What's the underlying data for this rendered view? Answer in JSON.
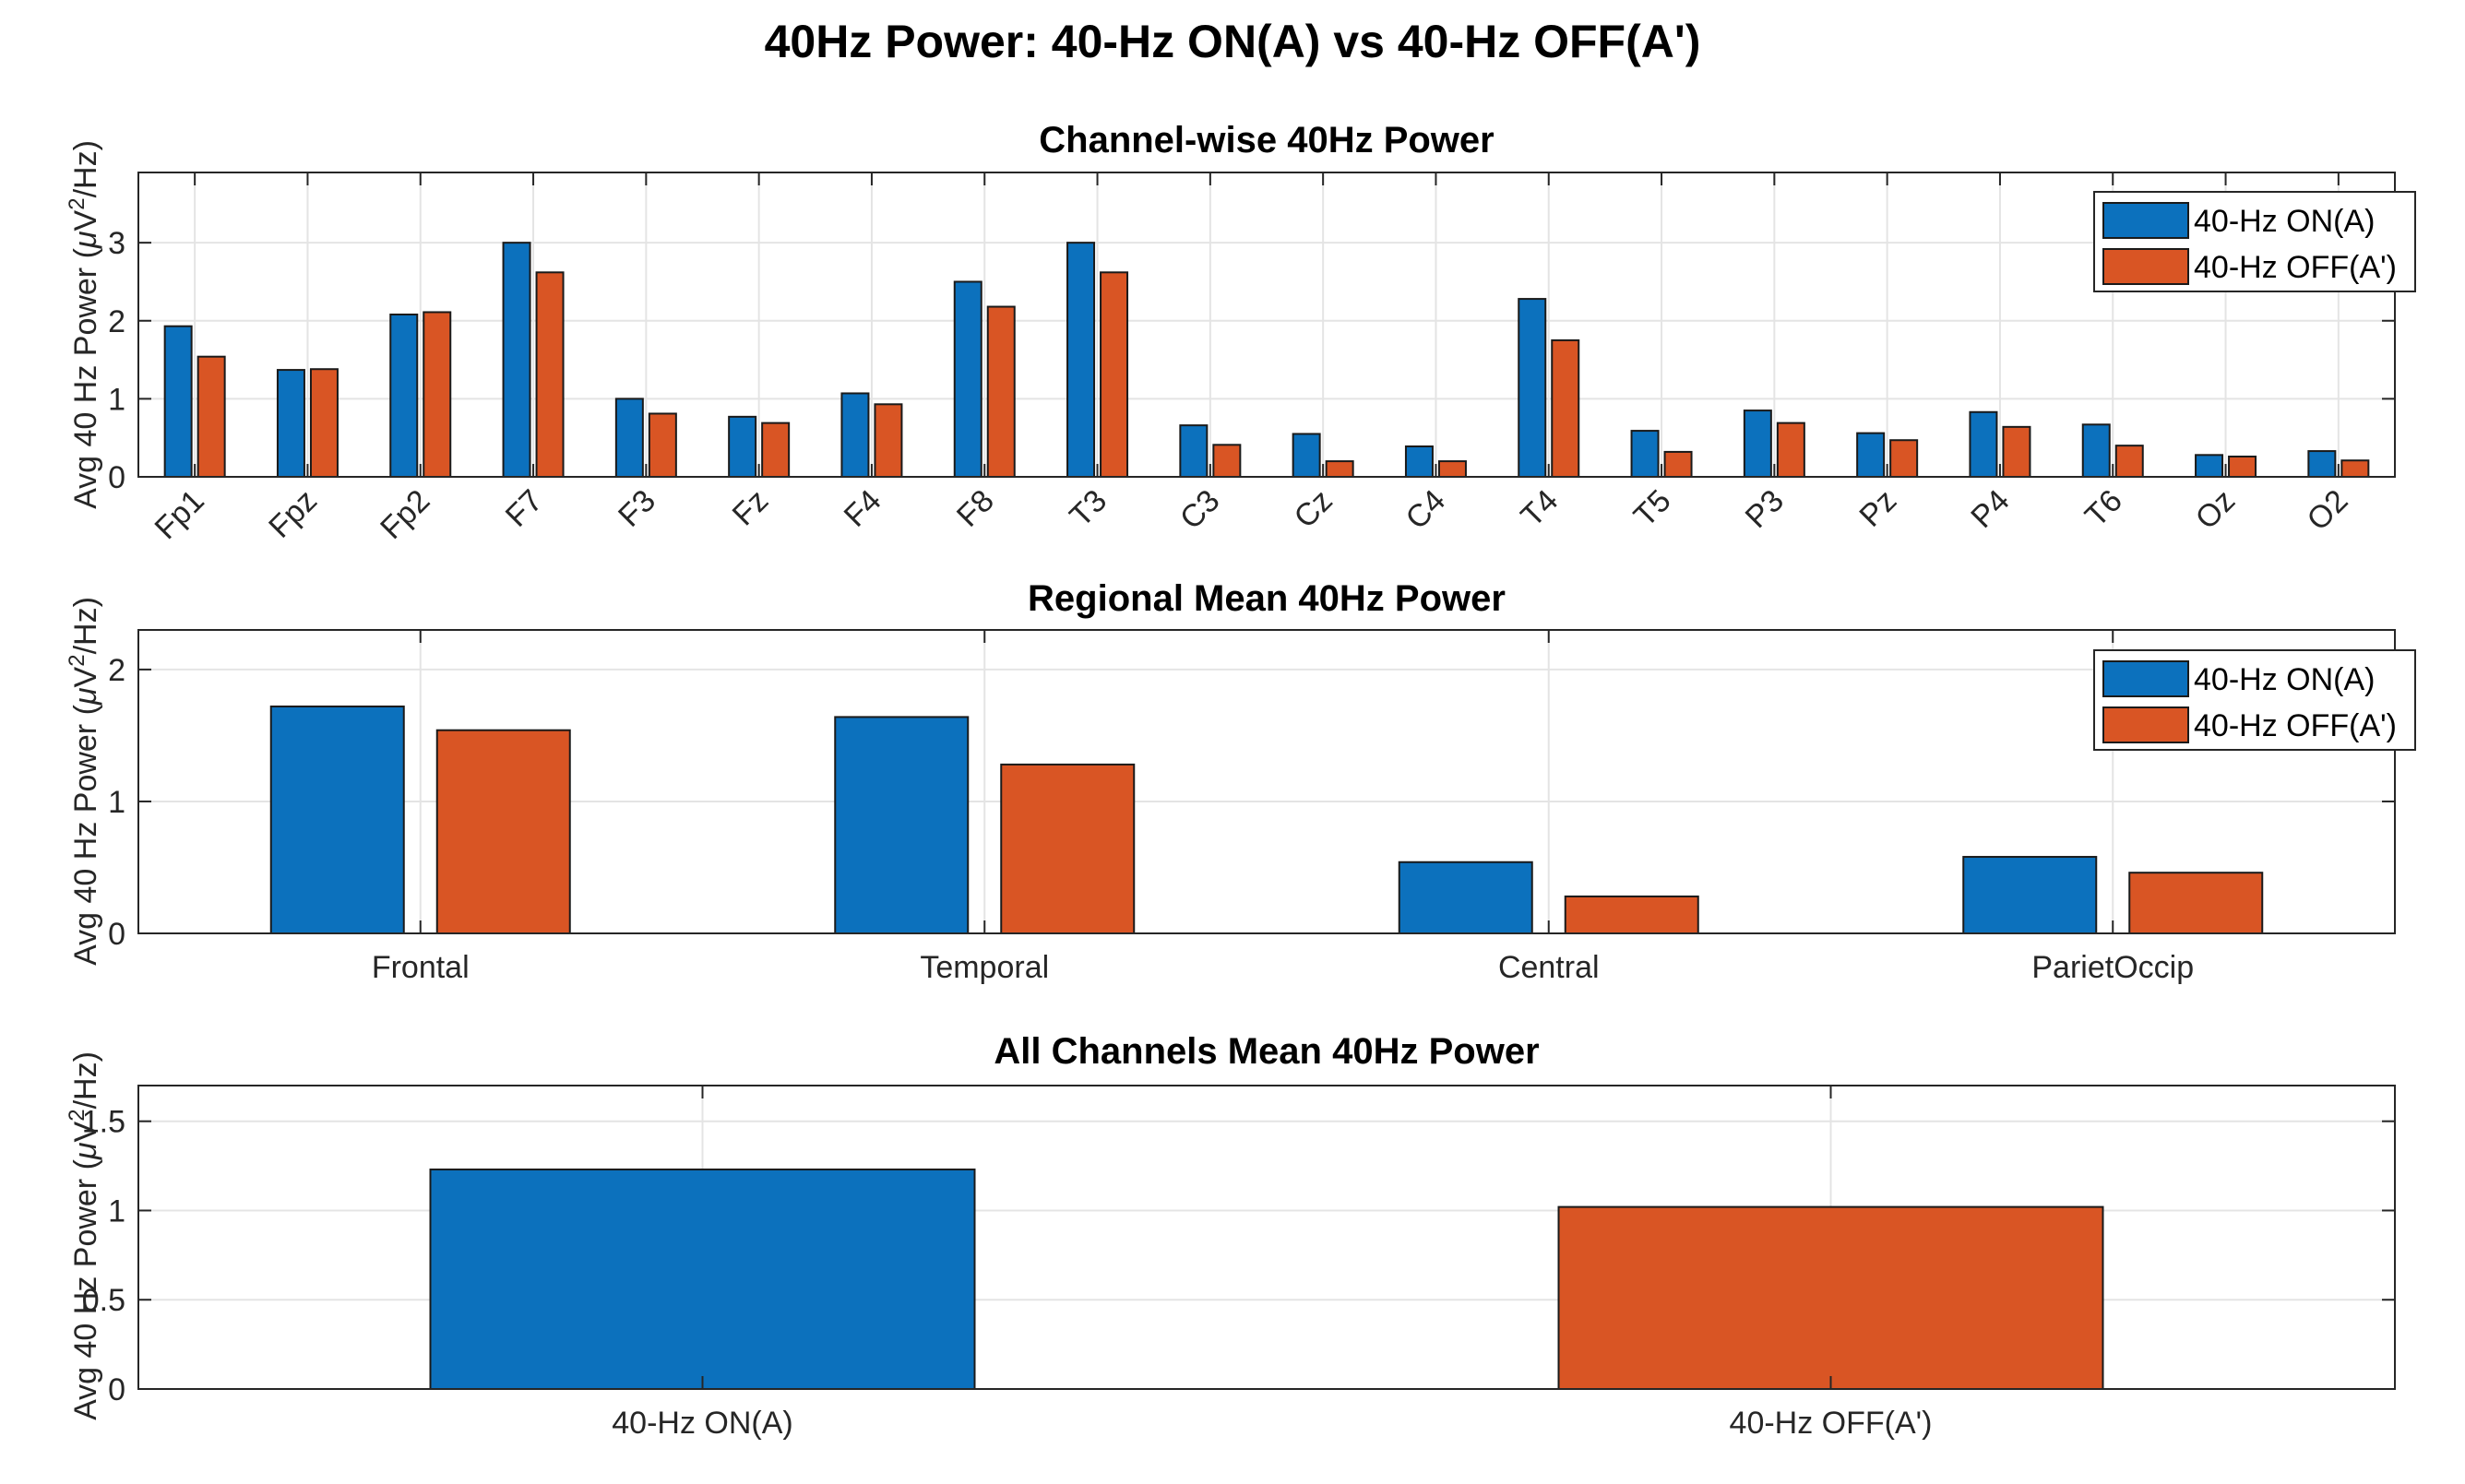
{
  "suptitle": "40Hz Power: 40-Hz ON(A) vs 40-Hz OFF(A')",
  "colors": {
    "on": "#0c71bd",
    "off": "#d95524"
  },
  "legend": {
    "on": "40-Hz ON(A)",
    "off": "40-Hz OFF(A')"
  },
  "ylabel": {
    "prefix": "Avg 40 Hz Power (",
    "mu": "μ",
    "unit": "V",
    "sup": "2",
    "suffix": "/Hz)"
  },
  "chart_data": [
    {
      "type": "bar",
      "title": "Channel-wise 40Hz Power",
      "ylabel": "Avg 40 Hz Power (μV²/Hz)",
      "ylim": [
        0,
        3.9
      ],
      "yticks": [
        0,
        1,
        2,
        3
      ],
      "ytick_labels": [
        "0",
        "1",
        "2",
        "3"
      ],
      "grid": true,
      "legend_position": "top-right",
      "categories": [
        "Fp1",
        "Fpz",
        "Fp2",
        "F7",
        "F3",
        "Fz",
        "F4",
        "F8",
        "T3",
        "C3",
        "Cz",
        "C4",
        "T4",
        "T5",
        "P3",
        "Pz",
        "P4",
        "T6",
        "Oz",
        "O2"
      ],
      "series": [
        {
          "name": "40-Hz ON(A)",
          "values": [
            1.93,
            1.37,
            2.08,
            3.0,
            1.0,
            0.77,
            1.07,
            2.5,
            3.0,
            0.66,
            0.55,
            0.39,
            2.28,
            0.59,
            0.85,
            0.56,
            0.83,
            0.67,
            0.28,
            0.33
          ]
        },
        {
          "name": "40-Hz OFF(A')",
          "values": [
            1.54,
            1.38,
            2.11,
            2.62,
            0.81,
            0.69,
            0.93,
            2.18,
            2.62,
            0.41,
            0.2,
            0.2,
            1.75,
            0.32,
            0.69,
            0.47,
            0.64,
            0.4,
            0.26,
            0.21
          ]
        }
      ]
    },
    {
      "type": "bar",
      "title": "Regional Mean 40Hz Power",
      "ylabel": "Avg 40 Hz Power (μV²/Hz)",
      "ylim": [
        0,
        2.3
      ],
      "yticks": [
        0,
        1,
        2
      ],
      "ytick_labels": [
        "0",
        "1",
        "2"
      ],
      "grid": true,
      "legend_position": "top-right",
      "categories": [
        "Frontal",
        "Temporal",
        "Central",
        "ParietOccip"
      ],
      "series": [
        {
          "name": "40-Hz ON(A)",
          "values": [
            1.72,
            1.64,
            0.54,
            0.58
          ]
        },
        {
          "name": "40-Hz OFF(A')",
          "values": [
            1.54,
            1.28,
            0.28,
            0.46
          ]
        }
      ]
    },
    {
      "type": "bar",
      "title": "All Channels Mean 40Hz Power",
      "ylabel": "Avg 40 Hz Power (μV²/Hz)",
      "ylim": [
        0,
        1.7
      ],
      "yticks": [
        0,
        0.5,
        1,
        1.5
      ],
      "ytick_labels": [
        "0",
        "0.5",
        "1",
        "1.5"
      ],
      "grid": true,
      "categories": [
        "40-Hz ON(A)",
        "40-Hz OFF(A')"
      ],
      "values": [
        1.23,
        1.02
      ]
    }
  ]
}
